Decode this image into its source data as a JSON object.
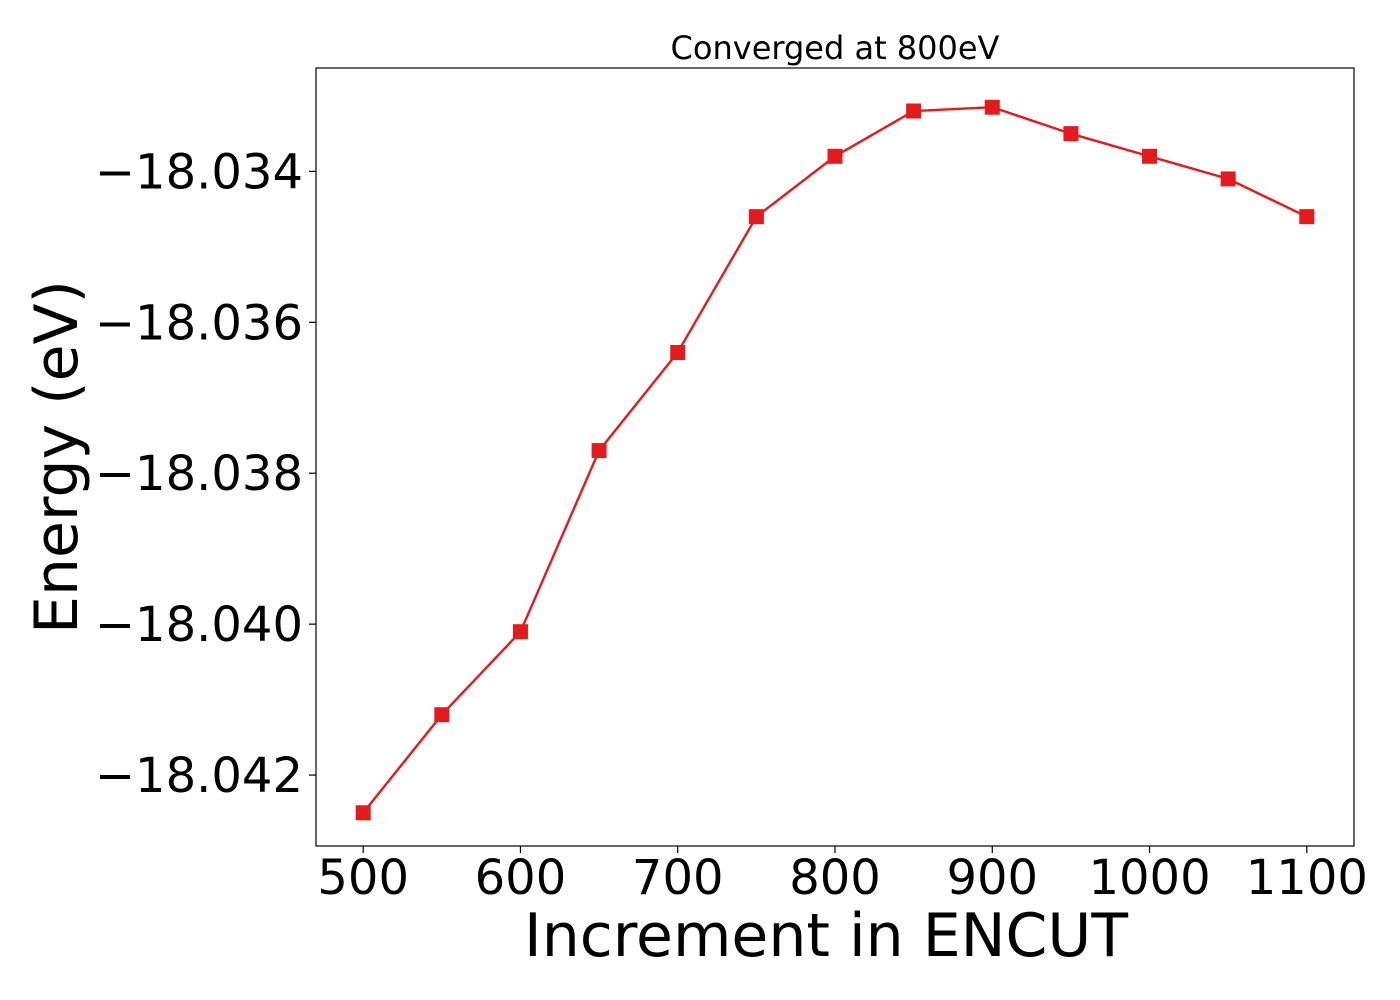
{
  "chart_data": {
    "type": "line",
    "title": "Converged at 800eV",
    "xlabel": "Increment in ENCUT",
    "ylabel": "Energy (eV)",
    "xlim": [
      470,
      1130
    ],
    "ylim": [
      -18.04294,
      -18.03263
    ],
    "xticks": [
      500,
      600,
      700,
      800,
      900,
      1000,
      1100
    ],
    "yticks": [
      -18.042,
      -18.04,
      -18.038,
      -18.036,
      -18.034
    ],
    "ytick_labels": [
      "−18.042",
      "−18.040",
      "−18.038",
      "−18.036",
      "−18.034"
    ],
    "grid": false,
    "legend": "none",
    "series": [
      {
        "color": "#e41a1c",
        "marker": "square",
        "x": [
          500,
          550,
          600,
          650,
          700,
          750,
          800,
          850,
          900,
          950,
          1000,
          1050,
          1100
        ],
        "y": [
          -18.0425,
          -18.0412,
          -18.0401,
          -18.0377,
          -18.0364,
          -18.0346,
          -18.0338,
          -18.0332,
          -18.03315,
          -18.0335,
          -18.0338,
          -18.0341,
          -18.0346
        ]
      }
    ]
  }
}
